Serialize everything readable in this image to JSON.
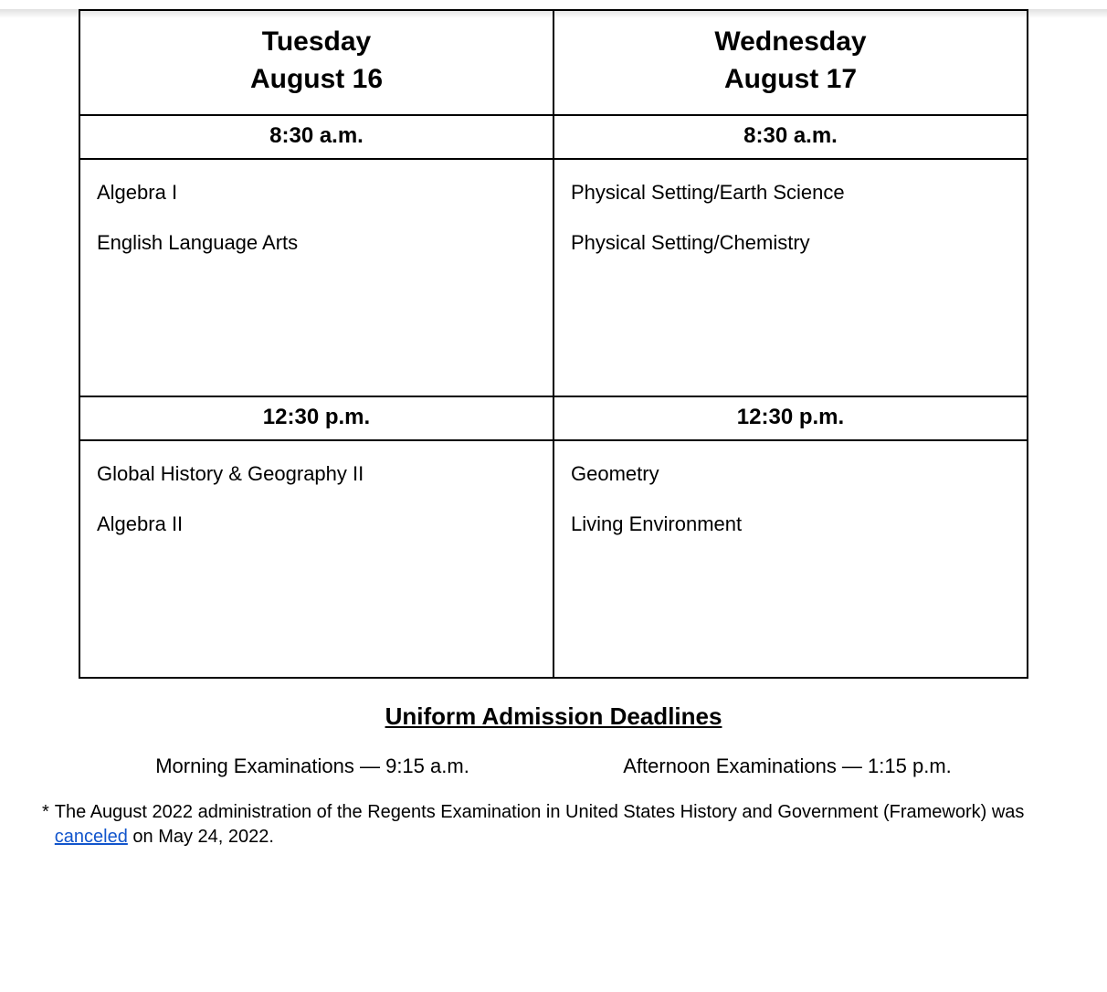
{
  "table": {
    "border_color": "#000000",
    "background_color": "#ffffff",
    "columns": [
      {
        "day": "Tuesday",
        "date": "August 16"
      },
      {
        "day": "Wednesday",
        "date": "August 17"
      }
    ],
    "sessions": [
      {
        "time": "8:30 a.m.",
        "exams_col0": [
          "Algebra I",
          "English Language Arts"
        ],
        "exams_col1": [
          "Physical Setting/Earth Science",
          "Physical Setting/Chemistry"
        ]
      },
      {
        "time": "12:30 p.m.",
        "exams_col0": [
          "Global History & Geography II",
          "Algebra II"
        ],
        "exams_col1": [
          "Geometry",
          "Living Environment"
        ]
      }
    ],
    "header_fontsize": 30,
    "time_fontsize": 24,
    "body_fontsize": 22,
    "text_color": "#000000"
  },
  "deadlines": {
    "title": "Uniform Admission Deadlines",
    "morning_label": "Morning Examinations — 9:15 a.m.",
    "afternoon_label": "Afternoon Examinations — 1:15 p.m.",
    "title_fontsize": 26,
    "row_fontsize": 22
  },
  "footnote": {
    "marker": "*",
    "text_before": "The August 2022 administration of the Regents Examination in United States History and Government (Framework) was ",
    "link_text": "canceled",
    "text_after": " on May 24, 2022.",
    "fontsize": 20,
    "link_color": "#1155cc"
  }
}
